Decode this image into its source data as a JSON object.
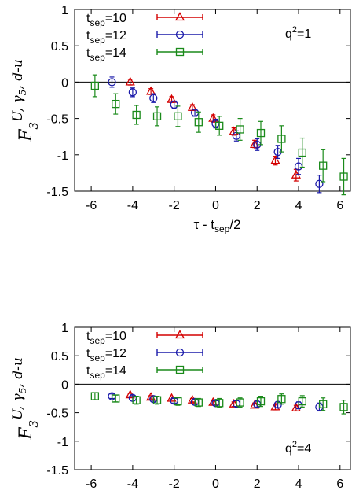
{
  "chart_data": [
    {
      "type": "scatter",
      "title": "",
      "ylabel": "F3^{U, γ5, d-u}",
      "ylabel_main": "F",
      "ylabel_sub": "3",
      "ylabel_sup": "U, γ5, d-u",
      "ylabel_parts": [
        "U, γ",
        "5",
        ", d-u"
      ],
      "xlabel": "τ - t_sep/2",
      "xlabel_parts": [
        "τ - t",
        "sep",
        "/2"
      ],
      "annotation": "q²=1",
      "annotation_parts": [
        "q",
        "2",
        "=1"
      ],
      "xlim": [
        -6.8,
        6.5
      ],
      "ylim": [
        -1.5,
        1
      ],
      "xticks": [
        "-6",
        "-4",
        "-2",
        "0",
        "2",
        "4",
        "6"
      ],
      "xtick_values": [
        -6,
        -4,
        -2,
        0,
        2,
        4,
        6
      ],
      "yticks": [
        "1",
        "0.5",
        "0",
        "-0.5",
        "-1",
        "-1.5"
      ],
      "ytick_values": [
        1,
        0.5,
        0,
        -0.5,
        -1,
        -1.5
      ],
      "legend_position": "top-left",
      "zero_line": true,
      "series": [
        {
          "name": "t_sep=10",
          "label_parts": [
            "t",
            "sep",
            "=10"
          ],
          "color": "#d40000",
          "marker": "triangle",
          "x": [
            -4,
            -3,
            -2,
            -1,
            0,
            1,
            2,
            3,
            4
          ],
          "y": [
            0.0,
            -0.13,
            -0.24,
            -0.35,
            -0.5,
            -0.68,
            -0.86,
            -1.08,
            -1.28
          ],
          "err": [
            0.04,
            0.04,
            0.04,
            0.04,
            0.05,
            0.05,
            0.06,
            0.06,
            0.08
          ]
        },
        {
          "name": "t_sep=12",
          "label_parts": [
            "t",
            "sep",
            "=12"
          ],
          "color": "#1a1aaa",
          "marker": "circle",
          "x": [
            -5,
            -4,
            -3,
            -2,
            -1,
            0,
            1,
            2,
            3,
            4,
            5
          ],
          "y": [
            0.0,
            -0.14,
            -0.22,
            -0.31,
            -0.42,
            -0.57,
            -0.74,
            -0.86,
            -0.96,
            -1.16,
            -1.4
          ],
          "err": [
            0.07,
            0.06,
            0.06,
            0.05,
            0.05,
            0.06,
            0.07,
            0.08,
            0.09,
            0.11,
            0.12
          ]
        },
        {
          "name": "t_sep=14",
          "label_parts": [
            "t",
            "sep",
            "=14"
          ],
          "color": "#1a8a1a",
          "marker": "square",
          "x": [
            -6,
            -5,
            -4,
            -3,
            -2,
            -1,
            0,
            1,
            2,
            3,
            4,
            5,
            6
          ],
          "y": [
            -0.05,
            -0.3,
            -0.45,
            -0.47,
            -0.47,
            -0.55,
            -0.6,
            -0.65,
            -0.7,
            -0.78,
            -0.97,
            -1.15,
            -1.3
          ],
          "err": [
            0.15,
            0.14,
            0.13,
            0.13,
            0.14,
            0.14,
            0.13,
            0.15,
            0.16,
            0.18,
            0.2,
            0.22,
            0.25
          ]
        }
      ]
    },
    {
      "type": "scatter",
      "title": "",
      "ylabel": "F3^{U, γ5, d-u}",
      "ylabel_main": "F",
      "ylabel_sub": "3",
      "ylabel_sup": "U, γ5, d-u",
      "ylabel_parts": [
        "U, γ",
        "5",
        ", d-u"
      ],
      "xlabel": "τ - t_sep/2",
      "xlabel_parts": [
        "τ - t",
        "sep",
        "/2"
      ],
      "annotation": "q²=4",
      "annotation_parts": [
        "q",
        "2",
        "=4"
      ],
      "xlim": [
        -6.8,
        6.5
      ],
      "ylim": [
        -1.5,
        1
      ],
      "xticks": [
        "-6",
        "-4",
        "-2",
        "0",
        "2",
        "4",
        "6"
      ],
      "xtick_values": [
        -6,
        -4,
        -2,
        0,
        2,
        4,
        6
      ],
      "yticks": [
        "1",
        "0.5",
        "0",
        "-0.5",
        "-1",
        "-1.5"
      ],
      "ytick_values": [
        1,
        0.5,
        0,
        -0.5,
        -1,
        -1.5
      ],
      "legend_position": "top-left",
      "zero_line": true,
      "series": [
        {
          "name": "t_sep=10",
          "label_parts": [
            "t",
            "sep",
            "=10"
          ],
          "color": "#d40000",
          "marker": "triangle",
          "x": [
            -4,
            -3,
            -2,
            -1,
            0,
            1,
            2,
            3,
            4
          ],
          "y": [
            -0.19,
            -0.23,
            -0.25,
            -0.28,
            -0.32,
            -0.35,
            -0.37,
            -0.4,
            -0.42
          ],
          "err": [
            0.03,
            0.03,
            0.03,
            0.03,
            0.03,
            0.04,
            0.04,
            0.05,
            0.05
          ]
        },
        {
          "name": "t_sep=12",
          "label_parts": [
            "t",
            "sep",
            "=12"
          ],
          "color": "#1a1aaa",
          "marker": "circle",
          "x": [
            -5,
            -4,
            -3,
            -2,
            -1,
            0,
            1,
            2,
            3,
            4,
            5
          ],
          "y": [
            -0.21,
            -0.24,
            -0.26,
            -0.29,
            -0.31,
            -0.33,
            -0.34,
            -0.35,
            -0.36,
            -0.37,
            -0.4
          ],
          "err": [
            0.04,
            0.04,
            0.04,
            0.04,
            0.04,
            0.04,
            0.05,
            0.05,
            0.05,
            0.06,
            0.07
          ]
        },
        {
          "name": "t_sep=14",
          "label_parts": [
            "t",
            "sep",
            "=14"
          ],
          "color": "#1a8a1a",
          "marker": "square",
          "x": [
            -6,
            -5,
            -4,
            -3,
            -2,
            -1,
            0,
            1,
            2,
            3,
            4,
            5,
            6
          ],
          "y": [
            -0.21,
            -0.25,
            -0.28,
            -0.28,
            -0.3,
            -0.32,
            -0.33,
            -0.32,
            -0.3,
            -0.26,
            -0.3,
            -0.35,
            -0.4
          ],
          "err": [
            0.06,
            0.06,
            0.07,
            0.07,
            0.07,
            0.07,
            0.08,
            0.08,
            0.09,
            0.09,
            0.1,
            0.11,
            0.12
          ]
        }
      ]
    }
  ]
}
